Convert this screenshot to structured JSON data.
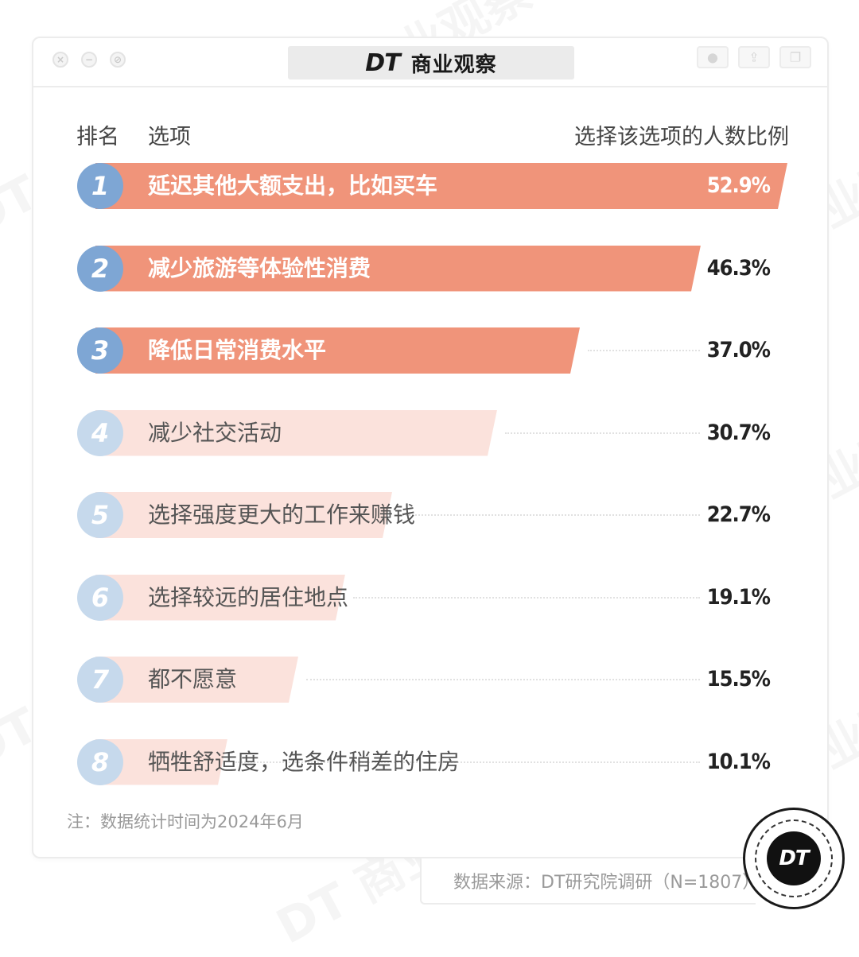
{
  "colors": {
    "top_bar": "#f0947a",
    "top_rank": "#7ea6d4",
    "light_bar": "#fbe2dc",
    "light_rank": "#c6d9ec",
    "top_label": "#ffffff",
    "light_label": "#555555",
    "value_text": "#222222"
  },
  "header": {
    "logo_text": "DT",
    "brand_name": "商业观察"
  },
  "columns": {
    "rank": "排名",
    "option": "选项",
    "ratio": "选择该选项的人数比例"
  },
  "chart_data": {
    "type": "bar",
    "orientation": "horizontal",
    "xlim": [
      0,
      55
    ],
    "value_format": "percent",
    "categories": [
      "延迟其他大额支出，比如买车",
      "减少旅游等体验性消费",
      "降低日常消费水平",
      "减少社交活动",
      "选择强度更大的工作来赚钱",
      "选择较远的居住地点",
      "都不愿意",
      "牺牲舒适度，选条件稍差的住房"
    ],
    "ranks": [
      "1",
      "2",
      "3",
      "4",
      "5",
      "6",
      "7",
      "8"
    ],
    "values": [
      52.9,
      46.3,
      37.0,
      30.7,
      22.7,
      19.1,
      15.5,
      10.1
    ],
    "value_labels": [
      "52.9%",
      "46.3%",
      "37.0%",
      "30.7%",
      "22.7%",
      "19.1%",
      "15.5%",
      "10.1%"
    ],
    "highlight_count": 3
  },
  "footnote": "注：数据统计时间为2024年6月",
  "source": "数据来源：DT研究院调研（N=1807）",
  "badge_text": "DT",
  "watermark_text": "DT 商业观察"
}
